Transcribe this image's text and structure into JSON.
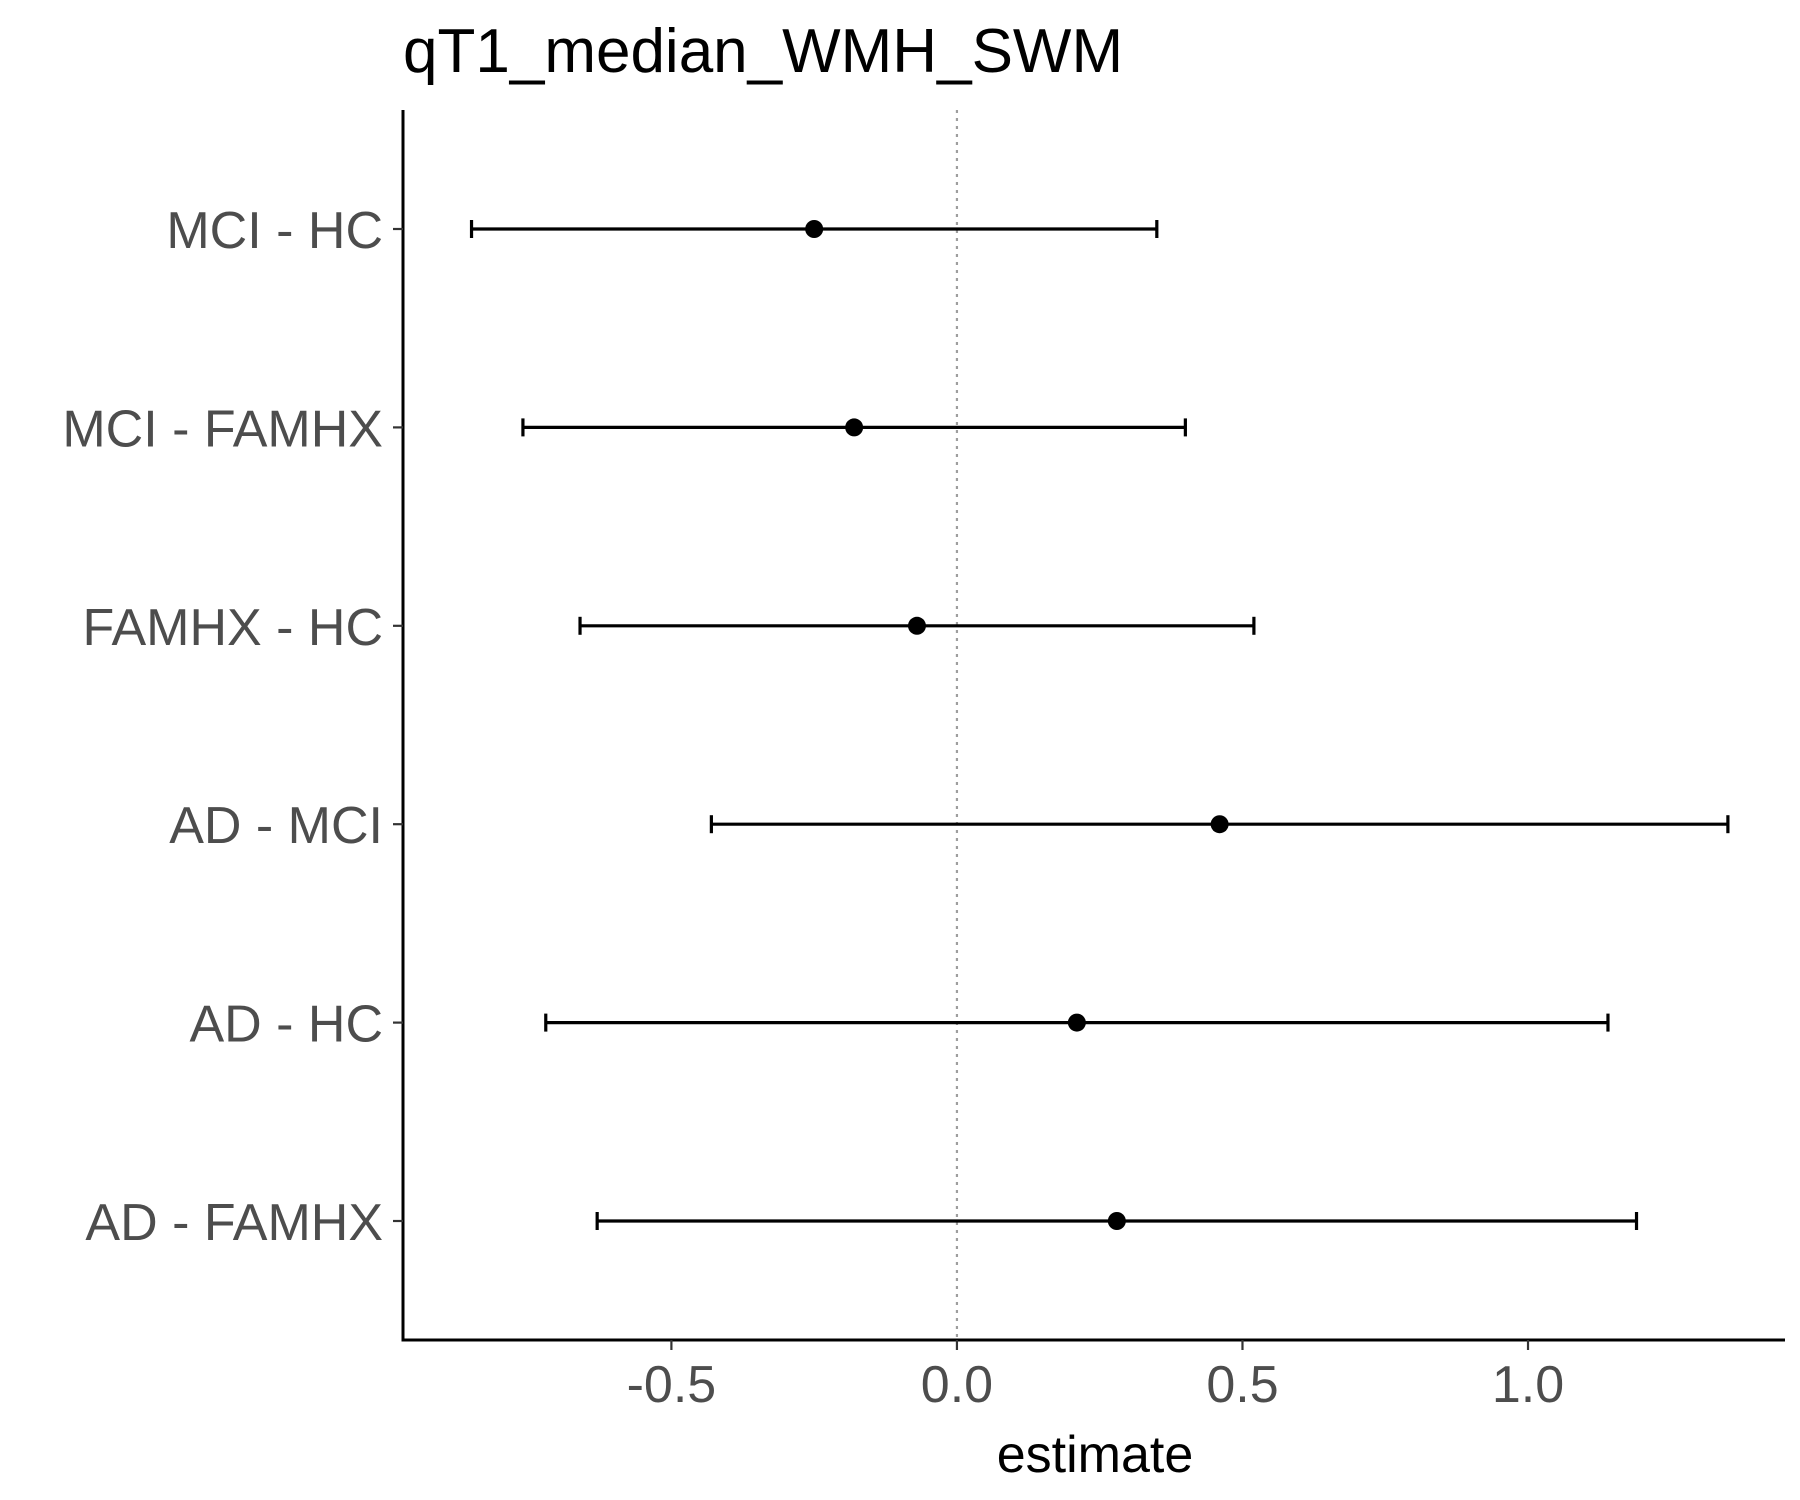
{
  "chart_data": {
    "type": "scatter",
    "subtype": "forest-plot-with-error-bars",
    "title": "qT1_median_WMH_SWM",
    "xlabel": "estimate",
    "ylabel": "",
    "xlim": [
      -0.97,
      1.45
    ],
    "xticks": [
      -0.5,
      0.0,
      0.5,
      1.0
    ],
    "xtick_labels": [
      "-0.5",
      "0.0",
      "0.5",
      "1.0"
    ],
    "reference_line": {
      "x": 0.0,
      "style": "dotted",
      "color": "#9e9e9e"
    },
    "grid": false,
    "legend": "none",
    "colors": {
      "point": "#000000",
      "errorbar": "#000000",
      "tick_label": "#4d4d4d"
    },
    "categories": [
      "MCI - HC",
      "MCI - FAMHX",
      "FAMHX - HC",
      "AD - MCI",
      "AD - HC",
      "AD - FAMHX"
    ],
    "estimates": [
      -0.25,
      -0.18,
      -0.07,
      0.46,
      0.21,
      0.28
    ],
    "lower": [
      -0.85,
      -0.76,
      -0.66,
      -0.43,
      -0.72,
      -0.63
    ],
    "upper": [
      0.35,
      0.4,
      0.52,
      1.35,
      1.14,
      1.19
    ]
  }
}
